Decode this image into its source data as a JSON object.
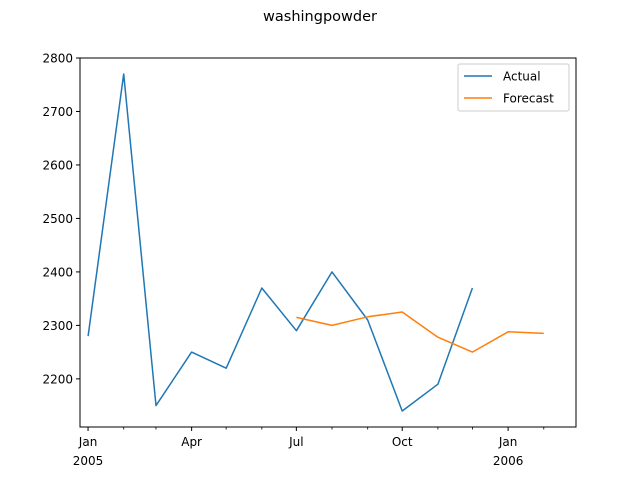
{
  "chart_data": {
    "type": "line",
    "title": "washingpowder",
    "xlabel": "",
    "ylabel": "",
    "x_months": [
      "2005-01",
      "2005-02",
      "2005-03",
      "2005-04",
      "2005-05",
      "2005-06",
      "2005-07",
      "2005-08",
      "2005-09",
      "2005-10",
      "2005-11",
      "2005-12",
      "2006-01",
      "2006-02"
    ],
    "ylim": [
      2110,
      2800
    ],
    "xlim": [
      "2004-12-25",
      "2006-03-01"
    ],
    "yticks": [
      2200,
      2300,
      2400,
      2500,
      2600,
      2700,
      2800
    ],
    "xticks": [
      {
        "month": "2005-01",
        "label": "Jan",
        "sublabel": "2005"
      },
      {
        "month": "2005-04",
        "label": "Apr",
        "sublabel": ""
      },
      {
        "month": "2005-07",
        "label": "Jul",
        "sublabel": ""
      },
      {
        "month": "2005-10",
        "label": "Oct",
        "sublabel": ""
      },
      {
        "month": "2006-01",
        "label": "Jan",
        "sublabel": "2006"
      }
    ],
    "minor_xticks": [
      "2005-02",
      "2005-03",
      "2005-05",
      "2005-06",
      "2005-08",
      "2005-09",
      "2005-11",
      "2005-12",
      "2006-02"
    ],
    "grid": false,
    "legend_position": "top-right",
    "series": [
      {
        "name": "Actual",
        "color": "#1f77b4",
        "x": [
          "2005-01",
          "2005-02",
          "2005-03",
          "2005-04",
          "2005-05",
          "2005-06",
          "2005-07",
          "2005-08",
          "2005-09",
          "2005-10",
          "2005-11",
          "2005-12"
        ],
        "values": [
          2280,
          2770,
          2150,
          2250,
          2220,
          2370,
          2290,
          2400,
          2310,
          2140,
          2190,
          2370
        ]
      },
      {
        "name": "Forecast",
        "color": "#ff7f0e",
        "x": [
          "2005-07",
          "2005-08",
          "2005-09",
          "2005-10",
          "2005-11",
          "2005-12",
          "2006-01",
          "2006-02"
        ],
        "values": [
          2315,
          2300,
          2316,
          2325,
          2278,
          2250,
          2288,
          2285
        ]
      }
    ]
  }
}
